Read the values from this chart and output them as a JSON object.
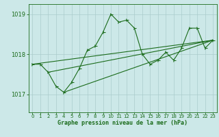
{
  "bg_color": "#cce8e8",
  "grid_color": "#aacccc",
  "line_color": "#1a6b1a",
  "text_color": "#1a6b1a",
  "xlabel": "Graphe pression niveau de la mer (hPa)",
  "ylim": [
    1016.55,
    1019.25
  ],
  "xlim": [
    -0.5,
    23.5
  ],
  "yticks": [
    1017,
    1018,
    1019
  ],
  "xticks": [
    0,
    1,
    2,
    3,
    4,
    5,
    6,
    7,
    8,
    9,
    10,
    11,
    12,
    13,
    14,
    15,
    16,
    17,
    18,
    19,
    20,
    21,
    22,
    23
  ],
  "series1_x": [
    0,
    1,
    2,
    3,
    4,
    5,
    6,
    7,
    8,
    9,
    10,
    11,
    12,
    13,
    14,
    15,
    16,
    17,
    18,
    19,
    20,
    21,
    22,
    23
  ],
  "series1_y": [
    1017.75,
    1017.75,
    1017.55,
    1017.2,
    1017.05,
    1017.3,
    1017.65,
    1018.1,
    1018.2,
    1018.55,
    1019.0,
    1018.8,
    1018.85,
    1018.65,
    1018.0,
    1017.75,
    1017.85,
    1018.05,
    1017.85,
    1018.15,
    1018.65,
    1018.65,
    1018.15,
    1018.35
  ],
  "trend1_x": [
    0,
    23
  ],
  "trend1_y": [
    1017.75,
    1018.35
  ],
  "trend2_x": [
    2,
    23
  ],
  "trend2_y": [
    1017.55,
    1018.35
  ],
  "trend3_x": [
    4,
    23
  ],
  "trend3_y": [
    1017.05,
    1018.35
  ]
}
